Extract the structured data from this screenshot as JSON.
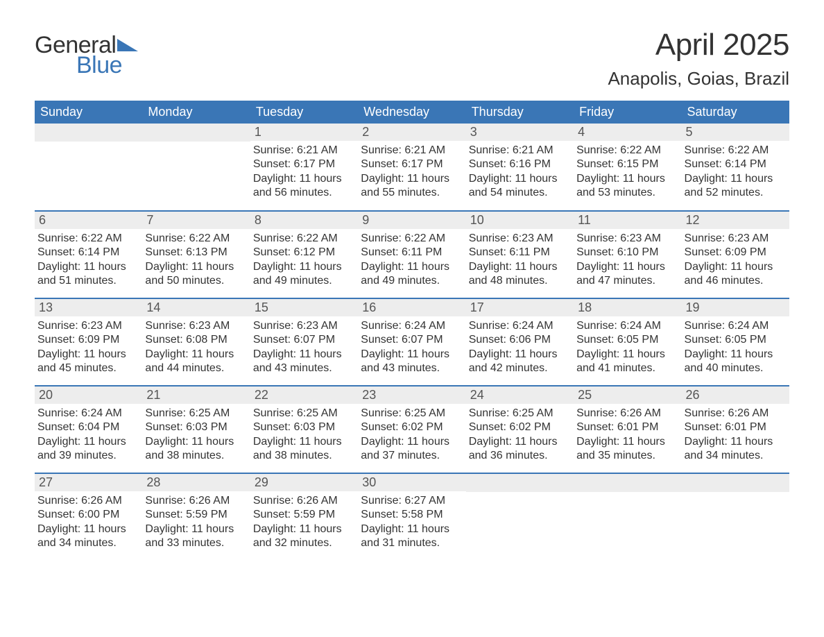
{
  "logo": {
    "word1": "General",
    "word2": "Blue",
    "accent_color": "#3a76b6"
  },
  "title": "April 2025",
  "location": "Anapolis, Goias, Brazil",
  "colors": {
    "header_bg": "#3a76b6",
    "header_fg": "#ffffff",
    "daynum_bg": "#ededed",
    "daynum_fg": "#555555",
    "body_fg": "#333333",
    "rule": "#3a76b6",
    "page_bg": "#ffffff"
  },
  "typography": {
    "title_fontsize": 44,
    "location_fontsize": 26,
    "header_fontsize": 18,
    "daynum_fontsize": 18,
    "body_fontsize": 16,
    "font_family": "Segoe UI"
  },
  "columns": [
    "Sunday",
    "Monday",
    "Tuesday",
    "Wednesday",
    "Thursday",
    "Friday",
    "Saturday"
  ],
  "weeks": [
    [
      null,
      null,
      {
        "n": "1",
        "sunrise": "6:21 AM",
        "sunset": "6:17 PM",
        "daylight": "11 hours and 56 minutes."
      },
      {
        "n": "2",
        "sunrise": "6:21 AM",
        "sunset": "6:17 PM",
        "daylight": "11 hours and 55 minutes."
      },
      {
        "n": "3",
        "sunrise": "6:21 AM",
        "sunset": "6:16 PM",
        "daylight": "11 hours and 54 minutes."
      },
      {
        "n": "4",
        "sunrise": "6:22 AM",
        "sunset": "6:15 PM",
        "daylight": "11 hours and 53 minutes."
      },
      {
        "n": "5",
        "sunrise": "6:22 AM",
        "sunset": "6:14 PM",
        "daylight": "11 hours and 52 minutes."
      }
    ],
    [
      {
        "n": "6",
        "sunrise": "6:22 AM",
        "sunset": "6:14 PM",
        "daylight": "11 hours and 51 minutes."
      },
      {
        "n": "7",
        "sunrise": "6:22 AM",
        "sunset": "6:13 PM",
        "daylight": "11 hours and 50 minutes."
      },
      {
        "n": "8",
        "sunrise": "6:22 AM",
        "sunset": "6:12 PM",
        "daylight": "11 hours and 49 minutes."
      },
      {
        "n": "9",
        "sunrise": "6:22 AM",
        "sunset": "6:11 PM",
        "daylight": "11 hours and 49 minutes."
      },
      {
        "n": "10",
        "sunrise": "6:23 AM",
        "sunset": "6:11 PM",
        "daylight": "11 hours and 48 minutes."
      },
      {
        "n": "11",
        "sunrise": "6:23 AM",
        "sunset": "6:10 PM",
        "daylight": "11 hours and 47 minutes."
      },
      {
        "n": "12",
        "sunrise": "6:23 AM",
        "sunset": "6:09 PM",
        "daylight": "11 hours and 46 minutes."
      }
    ],
    [
      {
        "n": "13",
        "sunrise": "6:23 AM",
        "sunset": "6:09 PM",
        "daylight": "11 hours and 45 minutes."
      },
      {
        "n": "14",
        "sunrise": "6:23 AM",
        "sunset": "6:08 PM",
        "daylight": "11 hours and 44 minutes."
      },
      {
        "n": "15",
        "sunrise": "6:23 AM",
        "sunset": "6:07 PM",
        "daylight": "11 hours and 43 minutes."
      },
      {
        "n": "16",
        "sunrise": "6:24 AM",
        "sunset": "6:07 PM",
        "daylight": "11 hours and 43 minutes."
      },
      {
        "n": "17",
        "sunrise": "6:24 AM",
        "sunset": "6:06 PM",
        "daylight": "11 hours and 42 minutes."
      },
      {
        "n": "18",
        "sunrise": "6:24 AM",
        "sunset": "6:05 PM",
        "daylight": "11 hours and 41 minutes."
      },
      {
        "n": "19",
        "sunrise": "6:24 AM",
        "sunset": "6:05 PM",
        "daylight": "11 hours and 40 minutes."
      }
    ],
    [
      {
        "n": "20",
        "sunrise": "6:24 AM",
        "sunset": "6:04 PM",
        "daylight": "11 hours and 39 minutes."
      },
      {
        "n": "21",
        "sunrise": "6:25 AM",
        "sunset": "6:03 PM",
        "daylight": "11 hours and 38 minutes."
      },
      {
        "n": "22",
        "sunrise": "6:25 AM",
        "sunset": "6:03 PM",
        "daylight": "11 hours and 38 minutes."
      },
      {
        "n": "23",
        "sunrise": "6:25 AM",
        "sunset": "6:02 PM",
        "daylight": "11 hours and 37 minutes."
      },
      {
        "n": "24",
        "sunrise": "6:25 AM",
        "sunset": "6:02 PM",
        "daylight": "11 hours and 36 minutes."
      },
      {
        "n": "25",
        "sunrise": "6:26 AM",
        "sunset": "6:01 PM",
        "daylight": "11 hours and 35 minutes."
      },
      {
        "n": "26",
        "sunrise": "6:26 AM",
        "sunset": "6:01 PM",
        "daylight": "11 hours and 34 minutes."
      }
    ],
    [
      {
        "n": "27",
        "sunrise": "6:26 AM",
        "sunset": "6:00 PM",
        "daylight": "11 hours and 34 minutes."
      },
      {
        "n": "28",
        "sunrise": "6:26 AM",
        "sunset": "5:59 PM",
        "daylight": "11 hours and 33 minutes."
      },
      {
        "n": "29",
        "sunrise": "6:26 AM",
        "sunset": "5:59 PM",
        "daylight": "11 hours and 32 minutes."
      },
      {
        "n": "30",
        "sunrise": "6:27 AM",
        "sunset": "5:58 PM",
        "daylight": "11 hours and 31 minutes."
      },
      null,
      null,
      null
    ]
  ],
  "labels": {
    "sunrise": "Sunrise: ",
    "sunset": "Sunset: ",
    "daylight": "Daylight: "
  }
}
